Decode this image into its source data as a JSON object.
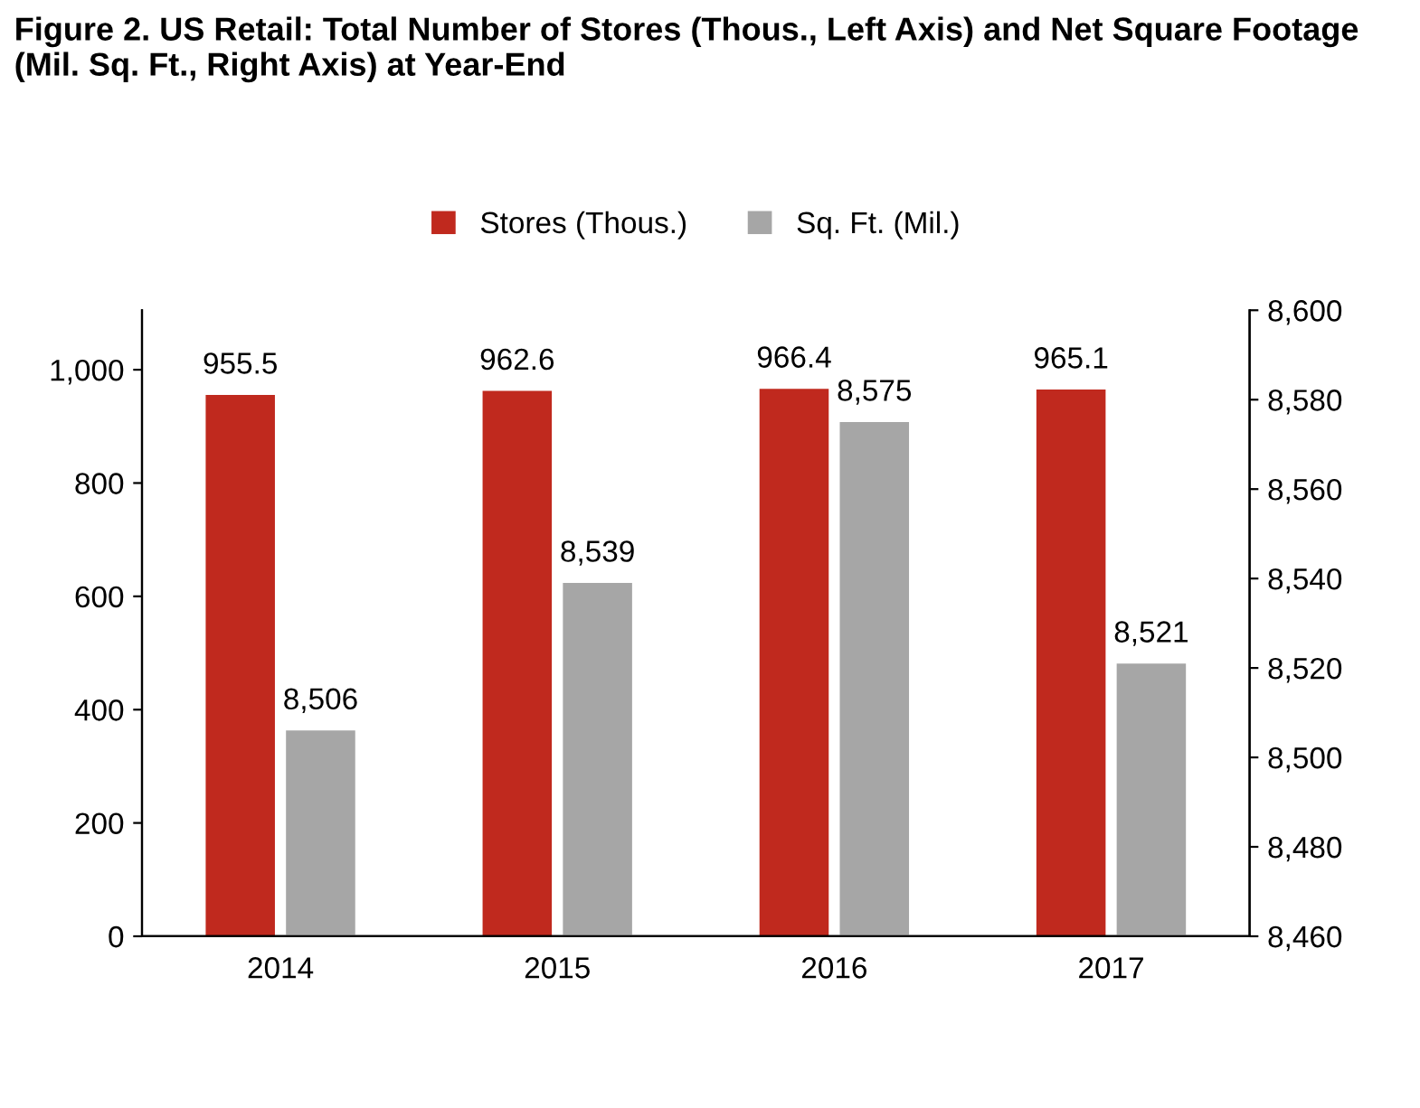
{
  "chart_data": {
    "type": "bar",
    "title": "Figure 2. US Retail: Total Number of Stores (Thous., Left Axis) and Net Square Footage (Mil. Sq. Ft., Right Axis) at Year-End",
    "categories": [
      "2014",
      "2015",
      "2016",
      "2017"
    ],
    "series": [
      {
        "name": "Stores (Thous.)",
        "color": "#c0291e",
        "values": [
          955.5,
          962.6,
          966.4,
          965.1
        ],
        "value_labels": [
          "955.5",
          "962.6",
          "966.4",
          "965.1"
        ]
      },
      {
        "name": "Sq. Ft. (Mil.)",
        "color": "#a6a6a6",
        "values": [
          8506,
          8539,
          8575,
          8521
        ],
        "axis": "y2",
        "value_labels": [
          "8,506",
          "8,539",
          "8,575",
          "8,521"
        ]
      }
    ],
    "ylim": [
      0,
      1105
    ],
    "yticks": [
      0,
      200,
      400,
      600,
      800,
      {
        "value": 1000,
        "label": "1,000"
      }
    ],
    "y2lim": [
      8460,
      8600
    ],
    "y2ticks": [
      {
        "value": 8460,
        "label": "8,460"
      },
      {
        "value": 8480,
        "label": "8,480"
      },
      {
        "value": 8500,
        "label": "8,500"
      },
      {
        "value": 8520,
        "label": "8,520"
      },
      {
        "value": 8540,
        "label": "8,540"
      },
      {
        "value": 8560,
        "label": "8,560"
      },
      {
        "value": 8580,
        "label": "8,580"
      },
      {
        "value": 8600,
        "label": "8,600"
      }
    ],
    "legend": "top",
    "grid": false
  }
}
